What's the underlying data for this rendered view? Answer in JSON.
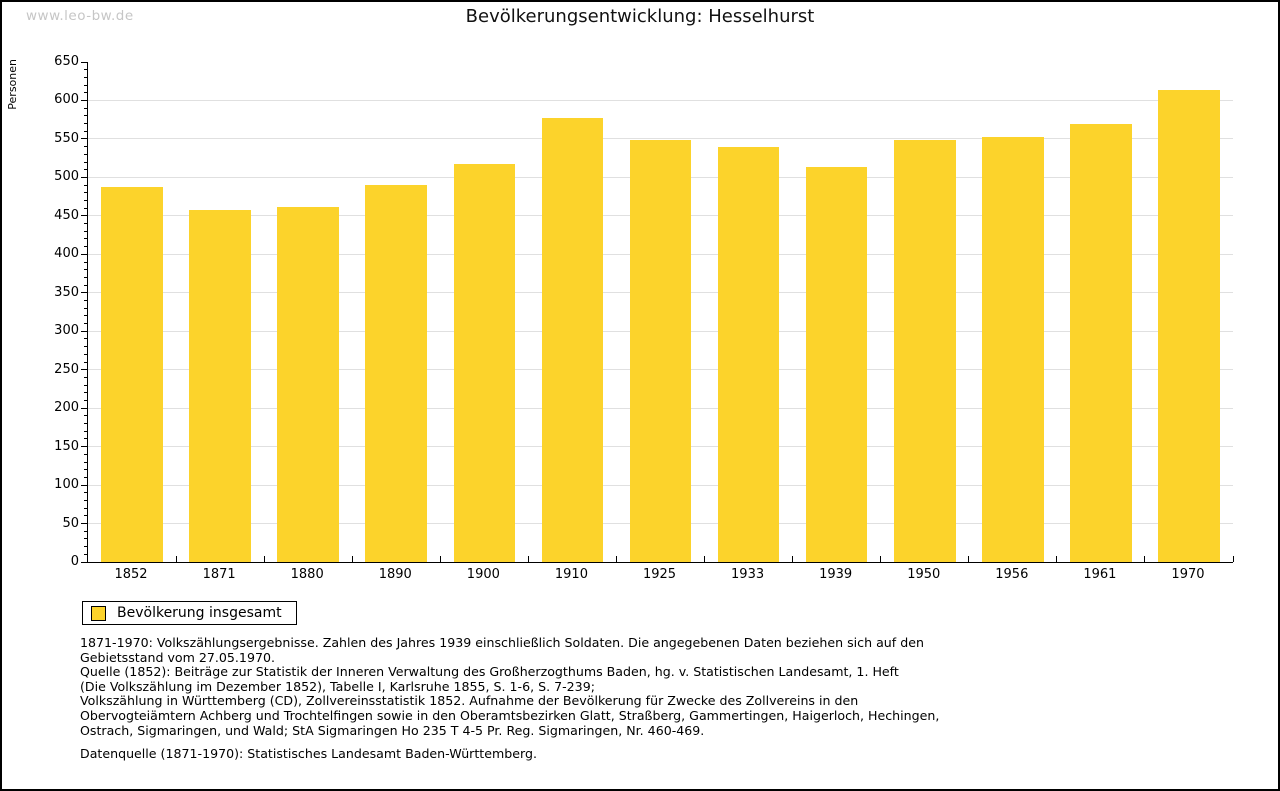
{
  "watermark": {
    "text": "www.leo-bw.de"
  },
  "header": {
    "title": "Bevölkerungsentwicklung: Hesselhurst"
  },
  "chart_data": {
    "type": "bar",
    "title": "Bevölkerungsentwicklung: Hesselhurst",
    "categories": [
      "1852",
      "1871",
      "1880",
      "1890",
      "1900",
      "1910",
      "1925",
      "1933",
      "1939",
      "1950",
      "1956",
      "1961",
      "1970"
    ],
    "values": [
      487,
      458,
      462,
      490,
      517,
      577,
      548,
      540,
      513,
      548,
      552,
      569,
      614
    ],
    "series_name": "Bevölkerung insgesamt",
    "xlabel": "",
    "ylabel": "Personen",
    "ylim": [
      0,
      650
    ],
    "ytick_step": 50,
    "yminor_step": 10,
    "grid": true,
    "gridline_max": 600,
    "legend_position": "bottom-left",
    "bar_color": "#FCD32B",
    "grid_color": "#E0E0E0",
    "axis_color": "#000000"
  },
  "legend": {
    "label": "Bevölkerung insgesamt"
  },
  "footnotes": {
    "lines": [
      "1871-1970: Volkszählungsergebnisse. Zahlen des Jahres 1939 einschließlich Soldaten. Die angegebenen Daten beziehen sich auf den",
      "Gebietsstand vom 27.05.1970.",
      "Quelle (1852): Beiträge zur Statistik der Inneren Verwaltung des Großherzogthums Baden, hg. v. Statistischen Landesamt, 1. Heft",
      "(Die Volkszählung im Dezember 1852), Tabelle I, Karlsruhe 1855, S. 1-6, S. 7-239;",
      "Volkszählung in Württemberg (CD), Zollvereinsstatistik 1852. Aufnahme der Bevölkerung für Zwecke des Zollvereins in den",
      "Obervogteiämtern Achberg und Trochtelfingen sowie in den Oberamtsbezirken Glatt, Straßberg, Gammertingen, Haigerloch, Hechingen,",
      "Ostrach, Sigmaringen, und Wald; StA Sigmaringen Ho 235 T 4-5 Pr. Reg. Sigmaringen, Nr. 460-469."
    ],
    "datasource": "Datenquelle (1871-1970): Statistisches Landesamt Baden-Württemberg."
  }
}
